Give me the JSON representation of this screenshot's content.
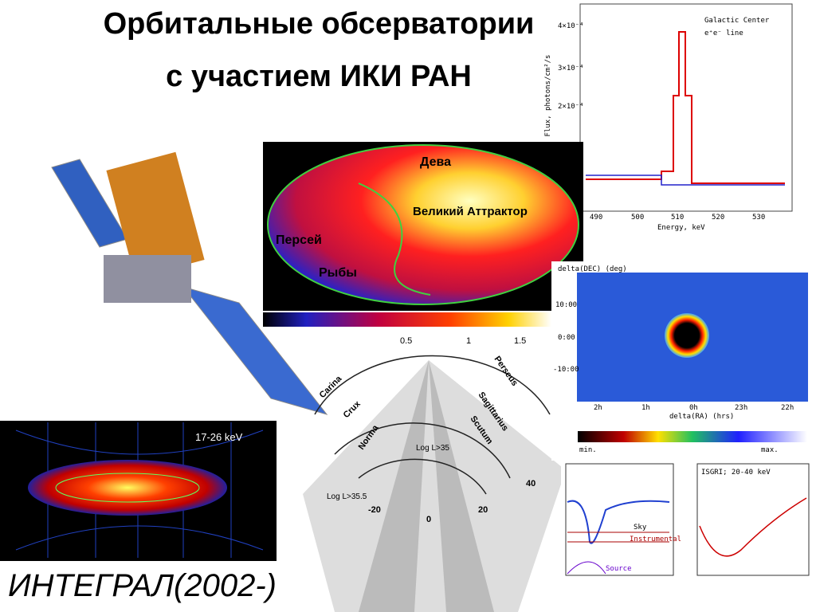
{
  "title": {
    "line1": "Орбитальные обсерватории",
    "line2": "с участием ИКИ РАН"
  },
  "caption": "ИНТЕГРАЛ(2002-)",
  "spectrum": {
    "title": "Galactic Center",
    "subtitle": "e⁺e⁻ line",
    "y_label": "Flux, photons/cm²/s",
    "y_ticks": [
      "4×10⁻⁴",
      "3×10⁻⁴",
      "2×10⁻⁴"
    ],
    "x_ticks": [
      "490",
      "500",
      "510",
      "520",
      "530"
    ],
    "x_label": "Energy, keV"
  },
  "sky_map": {
    "labels": [
      "Дева",
      "Великий Аттрактор",
      "Персей",
      "Рыбы"
    ],
    "scale_ticks": [
      "0.5",
      "1",
      "1.5"
    ]
  },
  "galaxy": {
    "label": "17-26 keV"
  },
  "spiral": {
    "arms": [
      "Carina",
      "Crux",
      "Norma",
      "Perseus",
      "Sagittarius",
      "Scutum"
    ],
    "labels": [
      "Log L>35",
      "Log L>35.5"
    ],
    "ticks": [
      "-20",
      "0",
      "20",
      "40"
    ]
  },
  "image": {
    "y_label": "delta(DEC) (deg)",
    "y_ticks": [
      "10:00",
      "0:00",
      "-10:00"
    ],
    "x_ticks": [
      "2h",
      "1h",
      "0h",
      "23h",
      "22h"
    ],
    "x_label": "delta(RA) (hrs)",
    "scale": [
      "min.",
      "max."
    ]
  },
  "light_curves": {
    "label": "ISGRI; 20-40 keV",
    "left_labels": [
      "Sky",
      "Instrumental",
      "Source"
    ]
  }
}
